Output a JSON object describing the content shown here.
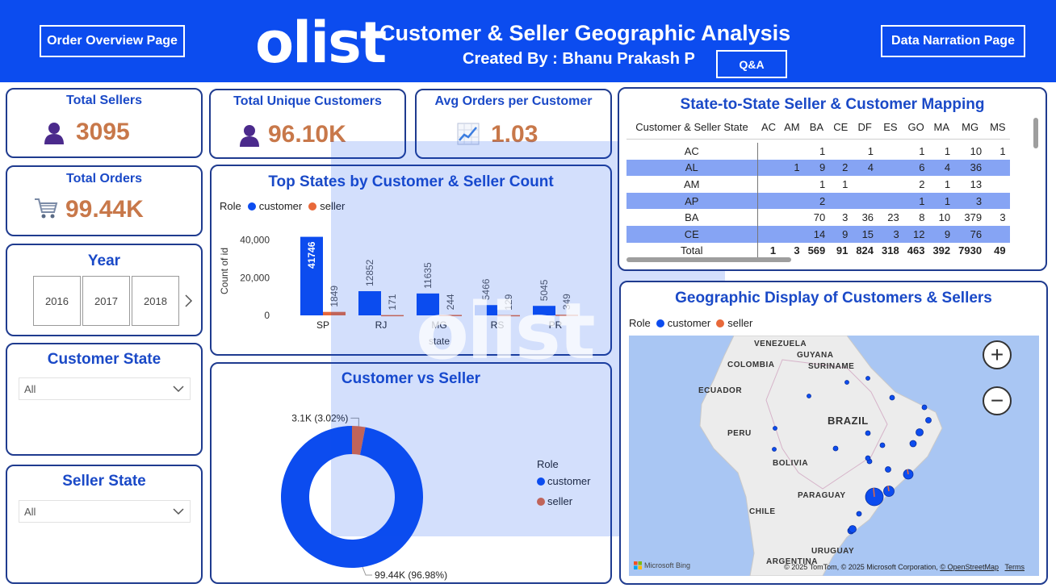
{
  "header": {
    "order_overview_label": "Order Overview Page",
    "logo_text": "olist",
    "title": "Customer & Seller Geographic Analysis",
    "subtitle": "Created By : Bhanu Prakash P",
    "qa_label": "Q&A",
    "data_narration_label": "Data Narration Page"
  },
  "kpis": {
    "total_sellers": {
      "title": "Total Sellers",
      "value": "3095",
      "icon": "person-icon"
    },
    "total_customers": {
      "title": "Total Unique Customers",
      "value": "96.10K",
      "icon": "person-icon"
    },
    "avg_orders": {
      "title": "Avg Orders per Customer",
      "value": "1.03",
      "icon": "trend-chart-icon"
    },
    "total_orders": {
      "title": "Total Orders",
      "value": "99.44K",
      "icon": "shopping-cart-icon"
    }
  },
  "year_slicer": {
    "title": "Year",
    "years": [
      "2016",
      "2017",
      "2018"
    ]
  },
  "customer_state": {
    "title": "Customer State",
    "value": "All"
  },
  "seller_state": {
    "title": "Seller State",
    "value": "All"
  },
  "colors": {
    "customer": "#0c4cef",
    "seller": "#e8693a",
    "header": "#0c4cef",
    "kpi_value": "#c8784a",
    "title": "#1a49c7"
  },
  "top_states": {
    "title": "Top States by Customer & Seller Count",
    "legend_title": "Role",
    "legend": [
      "customer",
      "seller"
    ],
    "ylabel": "Count of id",
    "xlabel": "state",
    "chart_data": {
      "type": "bar",
      "categories": [
        "SP",
        "RJ",
        "MG",
        "RS",
        "PR"
      ],
      "series": [
        {
          "name": "customer",
          "values": [
            41746,
            12852,
            11635,
            5466,
            5045
          ]
        },
        {
          "name": "seller",
          "values": [
            1849,
            171,
            244,
            129,
            349
          ]
        }
      ],
      "ylim": [
        0,
        45000
      ],
      "yticks": [
        "40,000",
        "20,000",
        "0"
      ]
    }
  },
  "donut": {
    "title": "Customer vs Seller",
    "legend_title": "Role",
    "legend": [
      "customer",
      "seller"
    ],
    "chart_data": {
      "type": "pie",
      "labels": [
        "customer",
        "seller"
      ],
      "values": [
        99.44,
        3.1
      ],
      "display": [
        "99.44K (96.98%)",
        "3.1K (3.02%)"
      ]
    }
  },
  "matrix": {
    "title": "State-to-State Seller & Customer Mapping",
    "columns": [
      "Customer & Seller State",
      "AC",
      "AM",
      "BA",
      "CE",
      "DF",
      "ES",
      "GO",
      "MA",
      "MG",
      "MS"
    ],
    "rows": [
      [
        "AC",
        "",
        "",
        "1",
        "",
        "1",
        "",
        "1",
        "1",
        "10",
        "1"
      ],
      [
        "AL",
        "",
        "1",
        "9",
        "2",
        "4",
        "",
        "6",
        "4",
        "36",
        ""
      ],
      [
        "AM",
        "",
        "",
        "1",
        "1",
        "",
        "",
        "2",
        "1",
        "13",
        ""
      ],
      [
        "AP",
        "",
        "",
        "2",
        "",
        "",
        "",
        "1",
        "1",
        "3",
        ""
      ],
      [
        "BA",
        "",
        "",
        "70",
        "3",
        "36",
        "23",
        "8",
        "10",
        "379",
        "3"
      ],
      [
        "CE",
        "",
        "",
        "14",
        "9",
        "15",
        "3",
        "12",
        "9",
        "76",
        ""
      ]
    ],
    "total": [
      "Total",
      "1",
      "3",
      "569",
      "91",
      "824",
      "318",
      "463",
      "392",
      "7930",
      "49"
    ]
  },
  "map": {
    "title": "Geographic Display of Customers & Sellers",
    "legend_title": "Role",
    "legend": [
      "customer",
      "seller"
    ],
    "labels": [
      "VENEZUELA",
      "GUYANA",
      "SURINAME",
      "COLOMBIA",
      "ECUADOR",
      "PERU",
      "BRAZIL",
      "BOLIVIA",
      "PARAGUAY",
      "CHILE",
      "URUGUAY",
      "ARGENTINA"
    ],
    "attribution": "© 2025 TomTom, © 2025 Microsoft Corporation,",
    "osm": "© OpenStreetMap",
    "terms": "Terms",
    "bing": "Microsoft Bing"
  }
}
